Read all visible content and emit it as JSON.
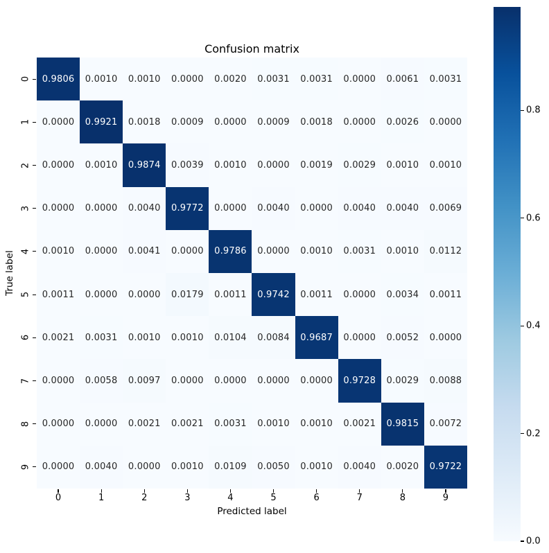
{
  "chart_data": {
    "type": "heatmap",
    "title": "Confusion matrix",
    "xlabel": "Predicted label",
    "ylabel": "True label",
    "x_tick_labels": [
      "0",
      "1",
      "2",
      "3",
      "4",
      "5",
      "6",
      "7",
      "8",
      "9"
    ],
    "y_tick_labels": [
      "0",
      "1",
      "2",
      "3",
      "4",
      "5",
      "6",
      "7",
      "8",
      "9"
    ],
    "matrix": [
      [
        0.9806,
        0.001,
        0.001,
        0.0,
        0.002,
        0.0031,
        0.0031,
        0.0,
        0.0061,
        0.0031
      ],
      [
        0.0,
        0.9921,
        0.0018,
        0.0009,
        0.0,
        0.0009,
        0.0018,
        0.0,
        0.0026,
        0.0
      ],
      [
        0.0,
        0.001,
        0.9874,
        0.0039,
        0.001,
        0.0,
        0.0019,
        0.0029,
        0.001,
        0.001
      ],
      [
        0.0,
        0.0,
        0.004,
        0.9772,
        0.0,
        0.004,
        0.0,
        0.004,
        0.004,
        0.0069
      ],
      [
        0.001,
        0.0,
        0.0041,
        0.0,
        0.9786,
        0.0,
        0.001,
        0.0031,
        0.001,
        0.0112
      ],
      [
        0.0011,
        0.0,
        0.0,
        0.0179,
        0.0011,
        0.9742,
        0.0011,
        0.0,
        0.0034,
        0.0011
      ],
      [
        0.0021,
        0.0031,
        0.001,
        0.001,
        0.0104,
        0.0084,
        0.9687,
        0.0,
        0.0052,
        0.0
      ],
      [
        0.0,
        0.0058,
        0.0097,
        0.0,
        0.0,
        0.0,
        0.0,
        0.9728,
        0.0029,
        0.0088
      ],
      [
        0.0,
        0.0,
        0.0021,
        0.0021,
        0.0031,
        0.001,
        0.001,
        0.0021,
        0.9815,
        0.0072
      ],
      [
        0.0,
        0.004,
        0.0,
        0.001,
        0.0109,
        0.005,
        0.001,
        0.004,
        0.002,
        0.9722
      ]
    ],
    "value_decimals": 4,
    "vmin": 0.0,
    "colorbar": {
      "ticks": [
        0.0,
        0.2,
        0.4,
        0.6,
        0.8
      ],
      "tick_labels": [
        "0.0",
        "0.2",
        "0.4",
        "0.6",
        "0.8"
      ],
      "position": "right"
    },
    "colormap": {
      "name": "Blues",
      "anchors": [
        "#f7fbff",
        "#deebf7",
        "#c6dbef",
        "#9ecae1",
        "#6baed6",
        "#4292c6",
        "#2171b5",
        "#08519c",
        "#08306b"
      ]
    },
    "annotation_colors": {
      "on_light": "#262626",
      "on_dark": "#ffffff"
    },
    "background_color": "#ffffff",
    "grid": false,
    "legend": false
  }
}
